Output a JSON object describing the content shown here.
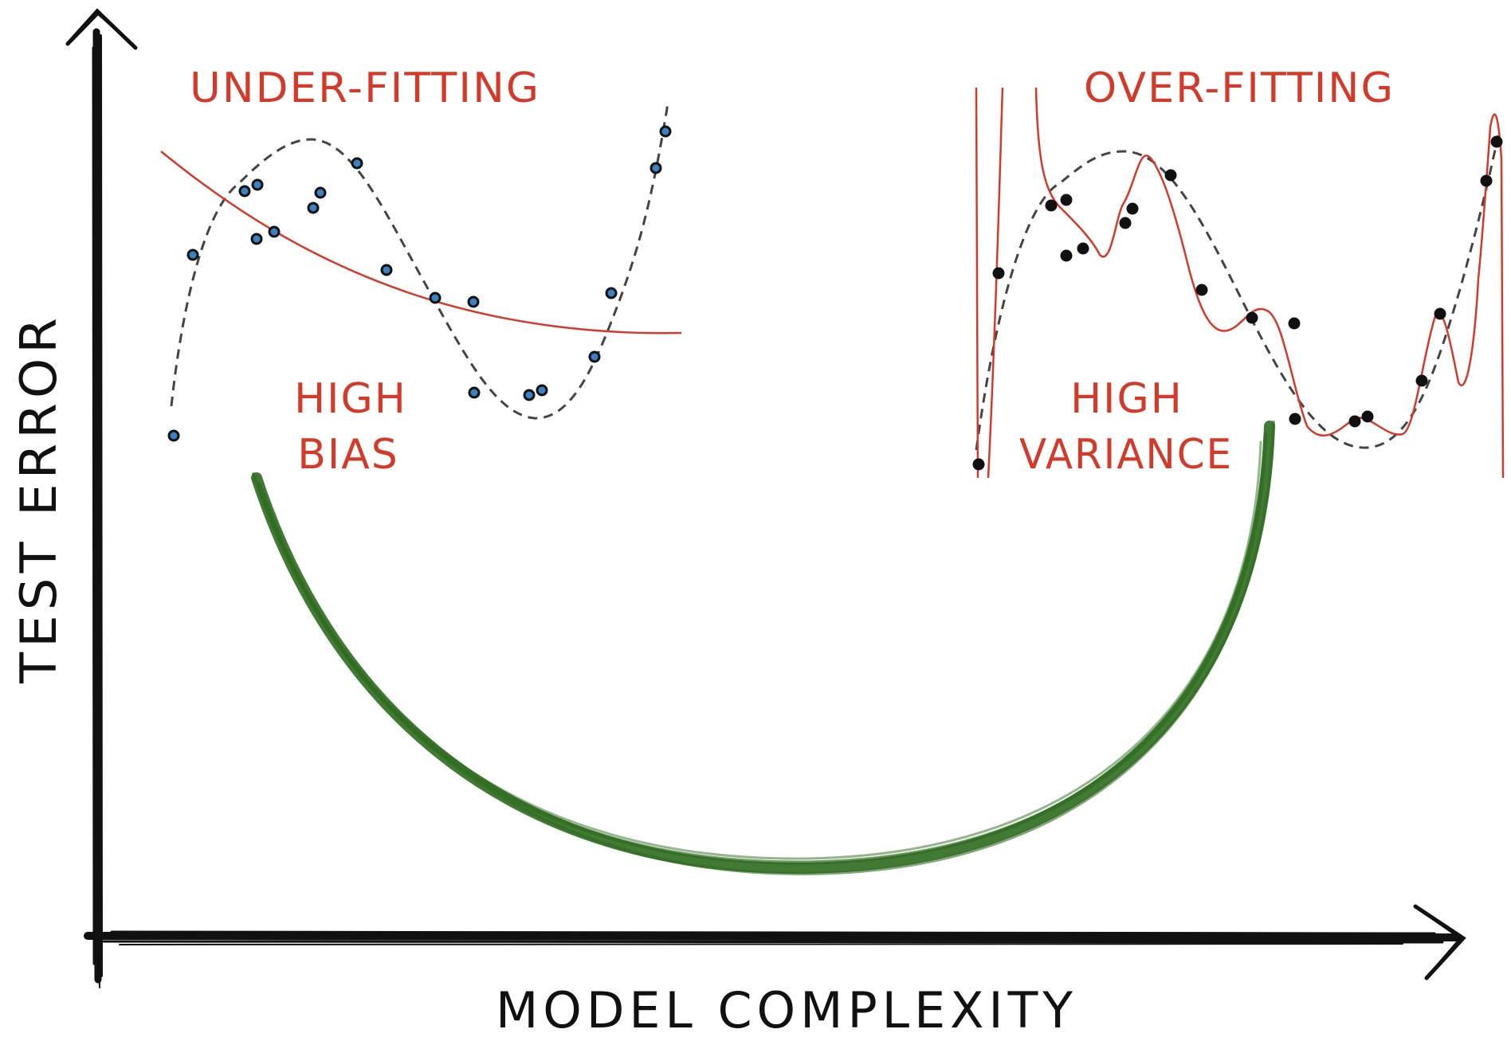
{
  "labels": {
    "under_fitting": "UNDER-FITTING",
    "over_fitting": "OVER-FITTING",
    "high_bias_line1": "HIGH",
    "high_bias_line2": "BIAS",
    "high_variance_line1": "HIGH",
    "high_variance_line2": "VARIANCE",
    "y_axis": "TEST ERROR",
    "x_axis": "MODEL COMPLEXITY"
  },
  "colors": {
    "red": "#d43a2a",
    "green": "#2e6b1f",
    "axis": "#111111",
    "dot_fill": "#3b82c4",
    "dashed": "#444444"
  }
}
